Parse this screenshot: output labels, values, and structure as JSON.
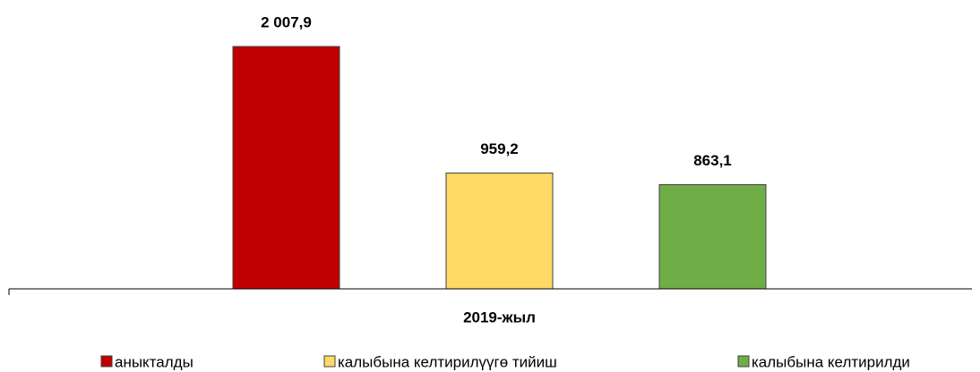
{
  "chart_data": {
    "type": "bar",
    "categories": [
      "2019-жыл"
    ],
    "series": [
      {
        "name": "аныкталды",
        "color": "#c00000",
        "values": [
          2007.9
        ],
        "value_labels": [
          "2 007,9"
        ]
      },
      {
        "name": "калыбына келтирилүүгө тийиш",
        "color": "#ffd966",
        "values": [
          959.2
        ],
        "value_labels": [
          "959,2"
        ]
      },
      {
        "name": "калыбына келтирилди",
        "color": "#70ad47",
        "values": [
          863.1
        ],
        "value_labels": [
          "863,1"
        ]
      }
    ],
    "legend": "bottom"
  }
}
